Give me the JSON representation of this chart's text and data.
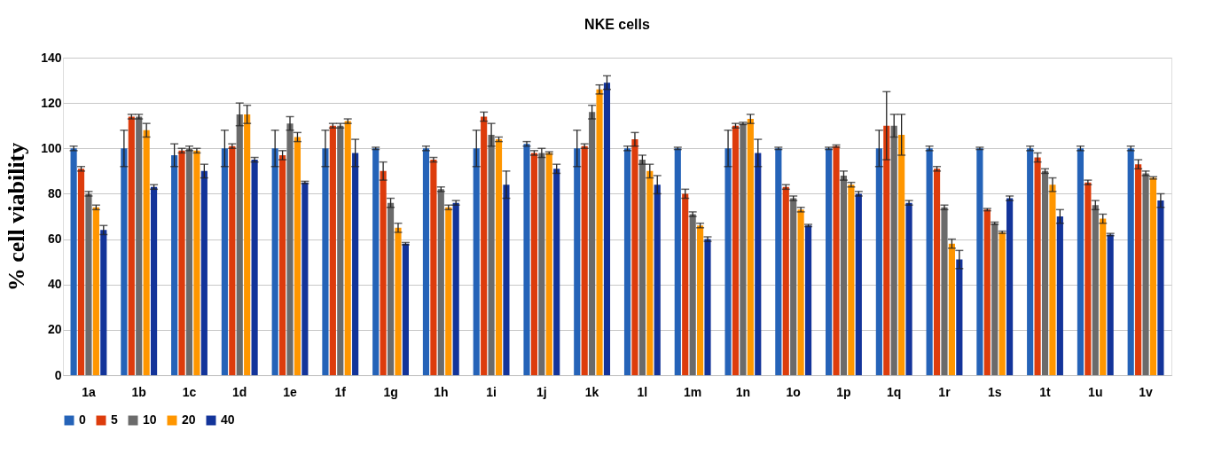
{
  "chart_data": {
    "type": "bar",
    "title": "NKE cells",
    "ylabel": "% cell viability",
    "categories": [
      "1a",
      "1b",
      "1c",
      "1d",
      "1e",
      "1f",
      "1g",
      "1h",
      "1i",
      "1j",
      "1k",
      "1l",
      "1m",
      "1n",
      "1o",
      "1p",
      "1q",
      "1r",
      "1s",
      "1t",
      "1u",
      "1v"
    ],
    "series": [
      {
        "name": "0",
        "color": "#2563b8",
        "values": [
          100,
          100,
          97,
          100,
          100,
          100,
          100,
          100,
          100,
          102,
          100,
          100,
          100,
          100,
          100,
          100,
          100,
          100,
          100,
          100,
          100,
          100
        ],
        "errors": [
          1,
          8,
          5,
          8,
          8,
          8,
          0.5,
          1,
          8,
          1,
          8,
          1,
          0.5,
          8,
          0.5,
          0.5,
          8,
          1,
          0.5,
          1,
          1,
          1
        ]
      },
      {
        "name": "5",
        "color": "#dd3c0c",
        "values": [
          91,
          114,
          99,
          101,
          97,
          110,
          90,
          95,
          114,
          98,
          101,
          104,
          80,
          110,
          83,
          101,
          110,
          91,
          73,
          96,
          85,
          93
        ],
        "errors": [
          1,
          1,
          1,
          1,
          2,
          1,
          4,
          1,
          2,
          1,
          1,
          3,
          2,
          1,
          1,
          0.5,
          15,
          1,
          0.5,
          2,
          1,
          2
        ]
      },
      {
        "name": "10",
        "color": "#6b6b6b",
        "values": [
          80,
          114,
          100,
          115,
          111,
          110,
          76,
          82,
          106,
          98,
          116,
          95,
          71,
          111,
          78,
          88,
          110,
          74,
          67,
          90,
          75,
          89
        ],
        "errors": [
          1,
          1,
          1,
          5,
          3,
          1,
          2,
          1,
          5,
          2,
          3,
          2,
          1,
          0.5,
          1,
          2,
          5,
          1,
          0.5,
          1,
          2,
          1
        ]
      },
      {
        "name": "20",
        "color": "#ff9600",
        "values": [
          74,
          108,
          99,
          115,
          105,
          112,
          65,
          74,
          104,
          98,
          126,
          90,
          66,
          113,
          73,
          84,
          106,
          58,
          63,
          84,
          69,
          87
        ],
        "errors": [
          1,
          3,
          1,
          4,
          2,
          1,
          2,
          1,
          1,
          0.5,
          2,
          3,
          1,
          2,
          1,
          1,
          9,
          2,
          0.5,
          3,
          2,
          0.5
        ]
      },
      {
        "name": "40",
        "color": "#13349a",
        "values": [
          64,
          83,
          90,
          95,
          85,
          98,
          58,
          76,
          84,
          91,
          129,
          84,
          60,
          98,
          66,
          80,
          76,
          51,
          78,
          70,
          62,
          77
        ],
        "errors": [
          2,
          1,
          3,
          1,
          0.5,
          6,
          0.5,
          1,
          6,
          2,
          3,
          4,
          1,
          6,
          0.5,
          1,
          1,
          4,
          1,
          3,
          0.5,
          3
        ]
      }
    ],
    "ylim": [
      0,
      140
    ],
    "yticks": [
      0,
      20,
      40,
      60,
      80,
      100,
      120,
      140
    ],
    "grid": "y",
    "legend": "bottom"
  }
}
